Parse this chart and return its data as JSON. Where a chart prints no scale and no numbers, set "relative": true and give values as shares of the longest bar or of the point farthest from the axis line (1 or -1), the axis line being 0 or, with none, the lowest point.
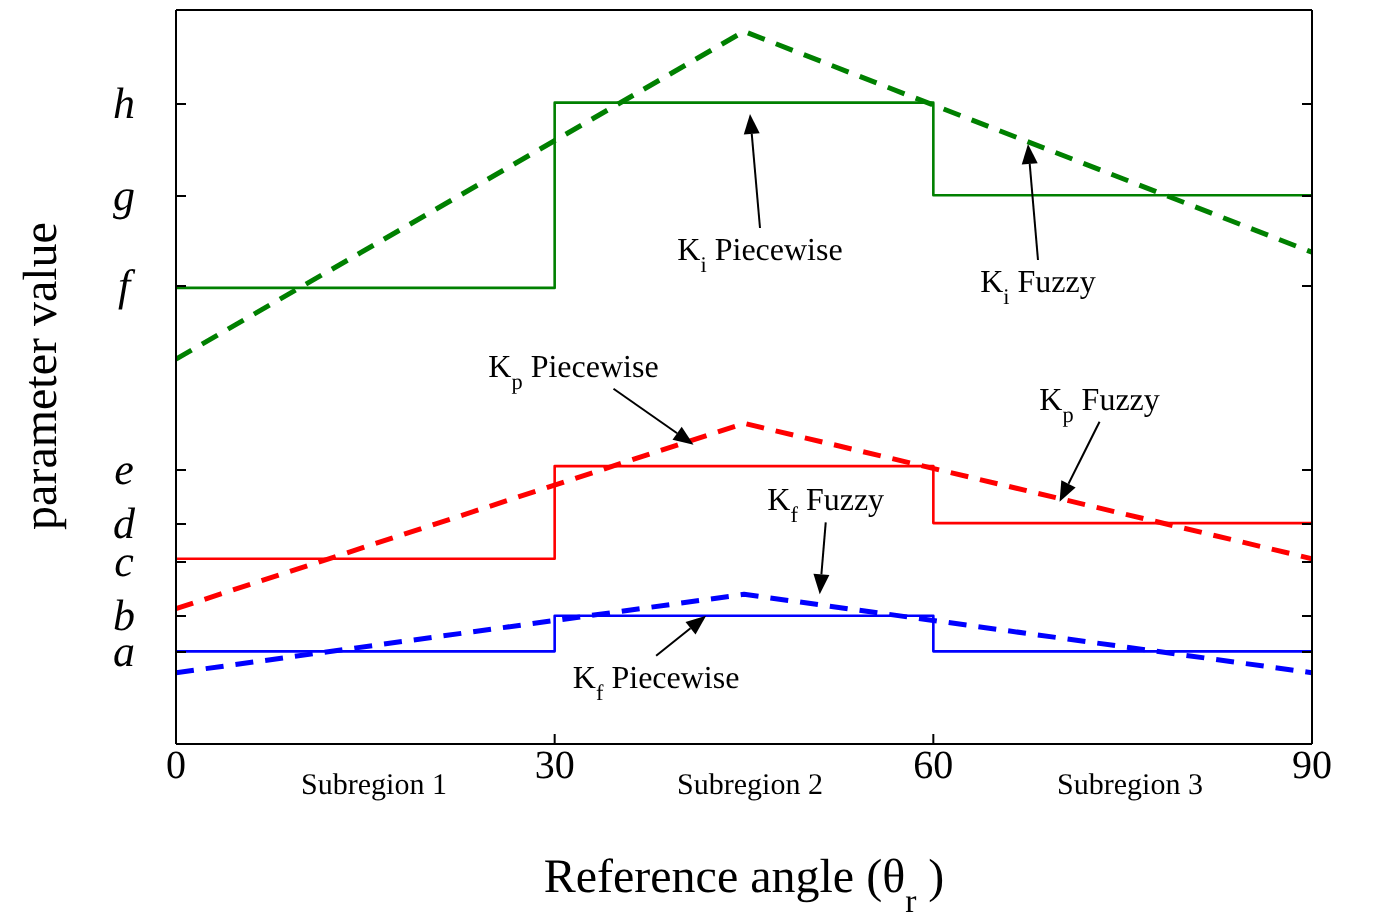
{
  "chart_data": {
    "type": "line",
    "relative": true,
    "xlabel": "Reference angle (θ$_{r}$)",
    "ylabel": "parameter value",
    "xlim": [
      0,
      90
    ],
    "xticks": [
      0,
      30,
      60,
      90
    ],
    "marker": "none",
    "series": [
      {
        "type": "step",
        "color": "#008000",
        "line_style": "solid",
        "x": [
          0,
          30,
          60,
          90
        ],
        "values": [
          0.64,
          0.9,
          0.77,
          0.77
        ]
      },
      {
        "color": "#008000",
        "line_style": "dashed",
        "x": [
          0,
          45,
          90
        ],
        "values": [
          0.54,
          1,
          0.69
        ]
      },
      {
        "type": "step",
        "color": "#ff0000",
        "line_style": "solid",
        "x": [
          0,
          30,
          60,
          90
        ],
        "values": [
          0.26,
          0.39,
          0.31,
          0.31
        ]
      },
      {
        "color": "#ff0000",
        "line_style": "dashed",
        "x": [
          0,
          45,
          90
        ],
        "values": [
          0.19,
          0.45,
          0.26
        ]
      },
      {
        "type": "step",
        "color": "#0000ff",
        "line_style": "solid",
        "x": [
          0,
          30,
          60,
          90
        ],
        "values": [
          0.13,
          0.18,
          0.13,
          0.13
        ]
      },
      {
        "color": "#0000ff",
        "line_style": "dashed",
        "x": [
          0,
          45,
          90
        ],
        "values": [
          0.1,
          0.21,
          0.1
        ]
      }
    ],
    "annotations": [
      "K$_{i}$ Piecewise",
      "K$_{i}$ Fuzzy",
      {
        "text": "K$_{p}$ Piecewise",
        "x": 41,
        "y": 0.42
      },
      {
        "text": "K$_{p}$ Fuzzy",
        "x": 70,
        "y": 0.34
      },
      {
        "text": "K$_{f}$ Fuzzy",
        "x": 51,
        "y": 0.21
      },
      {
        "text": "K$_{f}$ Piecewise",
        "x": 42,
        "y": 0.18
      },
      "Subregion 1",
      "Subregion 2",
      "Subregion 3",
      "h",
      "g",
      "f",
      "e",
      "d",
      "c",
      "b",
      "a"
    ]
  }
}
